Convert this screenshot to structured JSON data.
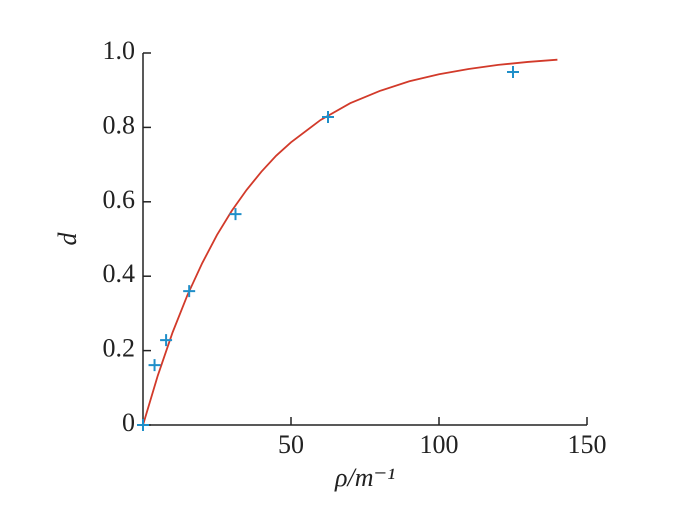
{
  "chart_data": {
    "type": "scatter",
    "xlabel": "ρ/m⁻¹",
    "ylabel": "d",
    "xlim": [
      0,
      150
    ],
    "ylim": [
      0,
      1
    ],
    "xticks": [
      50,
      100,
      150
    ],
    "yticks": [
      0,
      0.2,
      0.4,
      0.6,
      0.8,
      {
        "value": 1,
        "label": "1.0"
      }
    ],
    "series": [
      {
        "style": "line",
        "color": "#d23a2a",
        "x": [
          0,
          5,
          10,
          15,
          20,
          25,
          30,
          35,
          40,
          45,
          50,
          60,
          70,
          80,
          90,
          100,
          110,
          120,
          130,
          140
        ],
        "values": [
          0,
          0.133,
          0.249,
          0.349,
          0.435,
          0.511,
          0.576,
          0.632,
          0.681,
          0.724,
          0.76,
          0.82,
          0.865,
          0.898,
          0.924,
          0.943,
          0.957,
          0.968,
          0.976,
          0.982
        ]
      },
      {
        "style": "marker",
        "color": "#1f8fc9",
        "x": [
          0,
          3.9,
          7.8,
          15.6,
          31.25,
          62.5,
          125
        ],
        "values": [
          0,
          0.161,
          0.228,
          0.36,
          0.567,
          0.828,
          0.949
        ]
      }
    ]
  }
}
